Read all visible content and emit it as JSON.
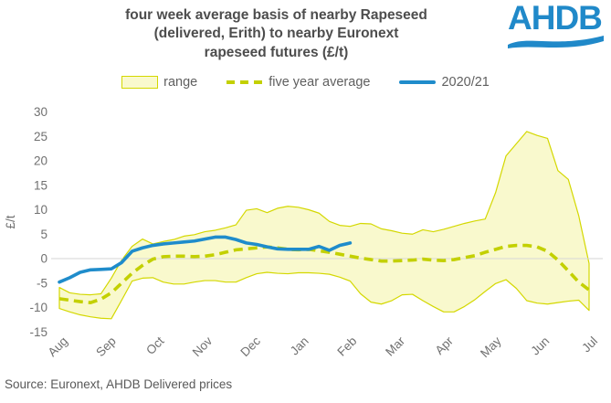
{
  "header": {
    "title_lines": [
      "four week average basis of nearby Rapeseed",
      "(delivered, Erith) to nearby Euronext",
      "rapeseed futures (£/t)"
    ],
    "logo_text": "AHDB"
  },
  "legend": {
    "items": [
      {
        "marker": "range-box",
        "label": "range"
      },
      {
        "marker": "dashed-line",
        "label": "five year average"
      },
      {
        "marker": "solid-line",
        "label": "2020/21"
      }
    ]
  },
  "footer": {
    "source": "Source: Euronext, AHDB Delivered prices"
  },
  "colors": {
    "range_fill": "#f9f9cd",
    "range_border": "#d4d800",
    "five_year_avg": "#c3d000",
    "line_2020_21": "#1f8ccb",
    "gridline": "#d6d6d6",
    "axis_text": "#707070",
    "logo_blue": "#2089c9"
  },
  "chart_data": {
    "type": "line",
    "title": "four week average basis of nearby Rapeseed (delivered, Erith) to nearby Euronext rapeseed futures (£/t)",
    "xlabel": "",
    "ylabel": "£/t",
    "ylim": [
      -15,
      30
    ],
    "yticks": [
      30,
      25,
      20,
      15,
      10,
      5,
      0,
      -5,
      -10,
      -15
    ],
    "grid": "zero-line only",
    "legend_position": "top",
    "x_tick_labels": [
      "Aug",
      "Sep",
      "Oct",
      "Nov",
      "Dec",
      "Jan",
      "Feb",
      "Mar",
      "Apr",
      "May",
      "Jun",
      "Jul"
    ],
    "x_unit": "weekly points, August through July",
    "series": [
      {
        "name": "range",
        "type": "band",
        "upper": [
          -5.9,
          -7.0,
          -7.3,
          -7.4,
          -7.2,
          -4.0,
          -0.3,
          2.5,
          4.0,
          3.0,
          3.5,
          3.9,
          4.6,
          4.9,
          5.5,
          5.8,
          6.3,
          6.9,
          9.9,
          10.2,
          9.4,
          10.3,
          10.7,
          10.5,
          10.0,
          9.3,
          7.6,
          6.8,
          6.6,
          7.2,
          7.1,
          6.1,
          5.7,
          5.2,
          5.0,
          5.9,
          5.5,
          6.0,
          6.6,
          7.2,
          7.7,
          8.1,
          13.5,
          21.0,
          23.5,
          26.0,
          25.2,
          24.6,
          18.0,
          16.2,
          8.8,
          -1.0
        ],
        "lower": [
          -10.2,
          -10.9,
          -11.5,
          -11.9,
          -12.2,
          -12.3,
          -8.5,
          -4.6,
          -4.0,
          -3.9,
          -4.8,
          -5.2,
          -5.2,
          -4.8,
          -4.5,
          -4.5,
          -4.8,
          -4.8,
          -3.9,
          -3.1,
          -2.8,
          -3.0,
          -3.1,
          -2.9,
          -2.9,
          -3.0,
          -3.2,
          -3.8,
          -4.6,
          -7.2,
          -8.9,
          -9.3,
          -8.6,
          -7.4,
          -7.3,
          -8.6,
          -9.8,
          -10.9,
          -10.9,
          -9.8,
          -8.4,
          -6.7,
          -5.1,
          -4.3,
          -6.1,
          -8.6,
          -9.1,
          -9.3,
          -9.0,
          -8.7,
          -8.5,
          -10.6
        ]
      },
      {
        "name": "five year average",
        "type": "dashed-line",
        "values": [
          -8.2,
          -8.5,
          -8.8,
          -9.0,
          -8.3,
          -7.0,
          -5.0,
          -3.0,
          -1.4,
          -0.1,
          0.4,
          0.5,
          0.5,
          0.4,
          0.5,
          0.8,
          1.3,
          1.8,
          2.0,
          2.2,
          2.4,
          2.2,
          1.9,
          1.8,
          1.9,
          1.6,
          1.3,
          0.9,
          0.5,
          0.1,
          -0.2,
          -0.5,
          -0.5,
          -0.4,
          -0.3,
          -0.1,
          -0.3,
          -0.4,
          -0.2,
          0.2,
          0.6,
          1.3,
          1.9,
          2.5,
          2.7,
          2.7,
          2.4,
          1.5,
          -0.3,
          -2.5,
          -4.8,
          -6.4
        ]
      },
      {
        "name": "2020/21",
        "type": "line",
        "values": [
          -4.8,
          -3.9,
          -2.8,
          -2.3,
          -2.2,
          -2.1,
          -0.8,
          1.5,
          2.2,
          2.7,
          3.0,
          3.2,
          3.4,
          3.6,
          4.0,
          4.4,
          4.4,
          3.9,
          3.2,
          2.9,
          2.4,
          2.0,
          1.9,
          1.9,
          1.9,
          2.5,
          1.7,
          2.7,
          3.2
        ]
      }
    ]
  }
}
